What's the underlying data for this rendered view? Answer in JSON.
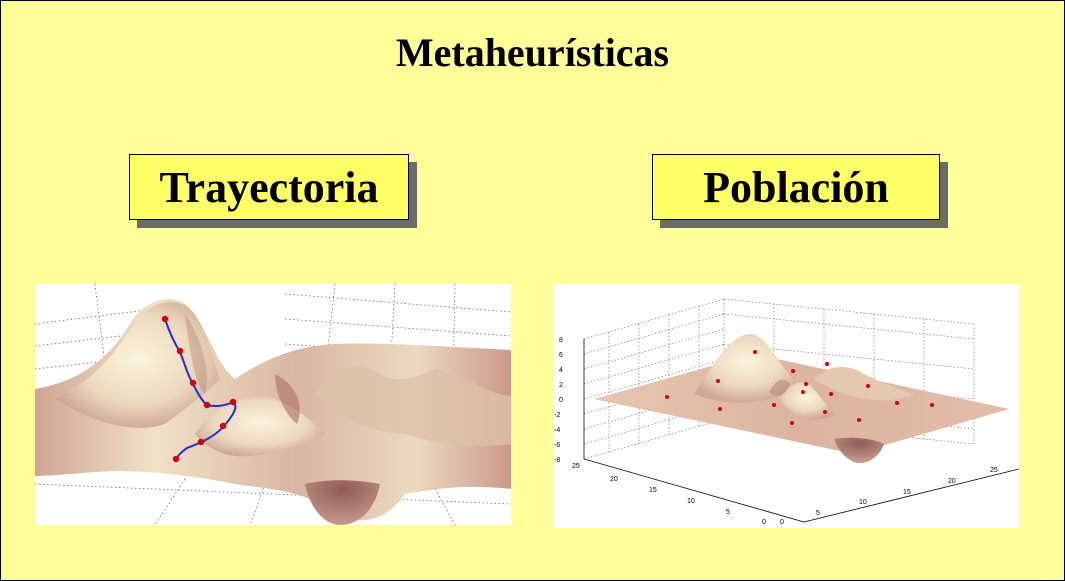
{
  "title": "Metaheurísticas",
  "labels": {
    "left": "Trayectoria",
    "right": "Población"
  },
  "colors": {
    "background": "#ffff99",
    "label_box": "#ffff66",
    "path": "#2a2ad6",
    "points": "#d40000"
  },
  "right_plot": {
    "z_ticks": [
      "8",
      "6",
      "4",
      "2",
      "0",
      "-2",
      "-4",
      "-6",
      "-8"
    ],
    "y_ticks": [
      "25",
      "20",
      "15",
      "10",
      "5",
      "0"
    ],
    "x_ticks": [
      "0",
      "5",
      "10",
      "15",
      "20",
      "25"
    ]
  }
}
